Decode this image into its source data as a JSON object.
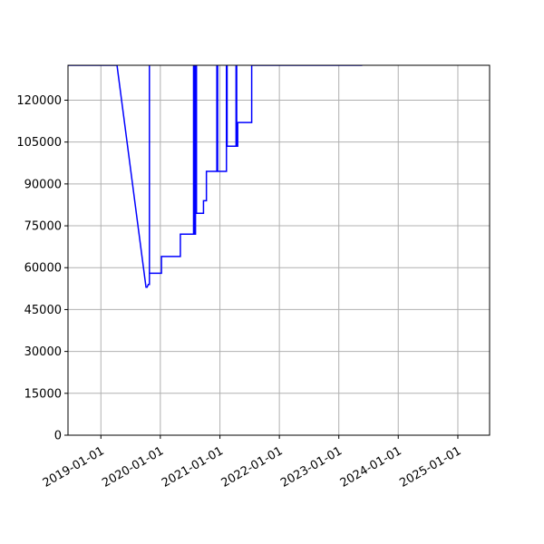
{
  "chart_data": {
    "type": "line",
    "title": "",
    "xlabel": "",
    "ylabel": "",
    "xlim": [
      "2018-06-13",
      "2025-07-15"
    ],
    "ylim": [
      0,
      132500
    ],
    "x_ticks": [
      "2019-01-01",
      "2020-01-01",
      "2021-01-01",
      "2022-01-01",
      "2023-01-01",
      "2024-01-01",
      "2025-01-01"
    ],
    "y_ticks": [
      0,
      15000,
      30000,
      45000,
      60000,
      75000,
      90000,
      105000,
      120000
    ],
    "grid": true,
    "color": "#0000ff",
    "series": [
      {
        "points": [
          [
            "2018-06-13",
            132500
          ],
          [
            "2019-04-10",
            132500
          ],
          [
            "2019-10-05",
            53000
          ],
          [
            "2019-10-12",
            53000
          ],
          [
            "2019-10-19",
            54000
          ],
          [
            "2019-10-26",
            54000
          ],
          [
            "2019-10-26",
            132500
          ],
          [
            "2019-10-26",
            58000
          ],
          [
            "2020-01-08",
            58000
          ],
          [
            "2020-01-08",
            64000
          ],
          [
            "2020-05-03",
            64000
          ],
          [
            "2020-05-03",
            72000
          ],
          [
            "2020-07-23",
            72000
          ],
          [
            "2020-07-23",
            132500
          ],
          [
            "2020-07-28",
            132500
          ],
          [
            "2020-07-28",
            72000
          ],
          [
            "2020-08-04",
            72000
          ],
          [
            "2020-08-04",
            132500
          ],
          [
            "2020-08-10",
            132500
          ],
          [
            "2020-08-10",
            79500
          ],
          [
            "2020-09-22",
            79500
          ],
          [
            "2020-09-22",
            84000
          ],
          [
            "2020-10-10",
            84000
          ],
          [
            "2020-10-10",
            94500
          ],
          [
            "2020-12-13",
            94500
          ],
          [
            "2020-12-13",
            132500
          ],
          [
            "2020-12-18",
            132500
          ],
          [
            "2020-12-18",
            94500
          ],
          [
            "2021-02-10",
            94500
          ],
          [
            "2021-02-10",
            132500
          ],
          [
            "2021-02-14",
            132500
          ],
          [
            "2021-02-14",
            103500
          ],
          [
            "2021-04-10",
            103500
          ],
          [
            "2021-04-10",
            132500
          ],
          [
            "2021-04-14",
            132500
          ],
          [
            "2021-04-14",
            103500
          ],
          [
            "2021-04-20",
            103500
          ],
          [
            "2021-04-20",
            112000
          ],
          [
            "2021-07-15",
            112000
          ],
          [
            "2021-07-15",
            132500
          ],
          [
            "2023-05-25",
            132500
          ]
        ]
      }
    ]
  }
}
